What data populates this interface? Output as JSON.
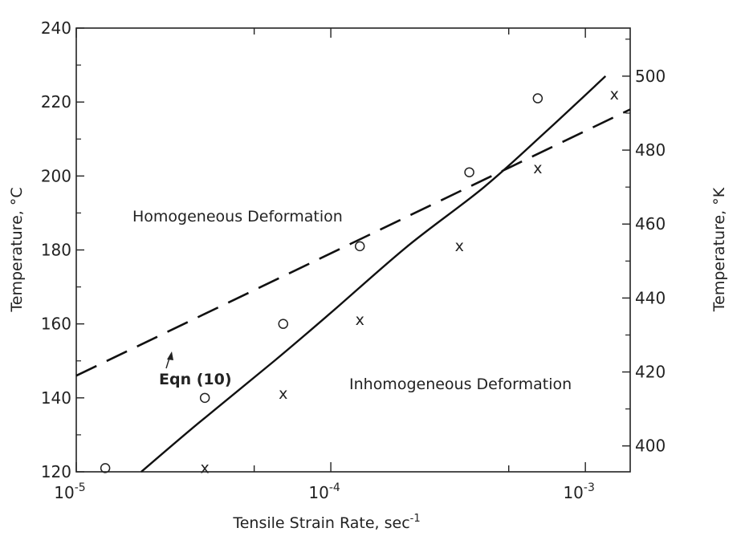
{
  "chart_data": {
    "type": "scatter",
    "xscale": "log",
    "xlim": [
      1e-05,
      0.0015
    ],
    "ylim": [
      120,
      240
    ],
    "y2lim": [
      393,
      513
    ],
    "xlabel": "Tensile Strain Rate, sec",
    "xlabel_superscript": "-1",
    "ylabel": "Temperature, °C",
    "y2label": "Temperature, °K",
    "x_tick_labels": [
      {
        "value": 1e-05,
        "base": "10",
        "exp": "-5"
      },
      {
        "value": 0.0001,
        "base": "10",
        "exp": "-4"
      },
      {
        "value": 0.001,
        "base": "10",
        "exp": "-3"
      }
    ],
    "y_ticks": [
      120,
      140,
      160,
      180,
      200,
      220,
      240
    ],
    "y2_ticks": [
      400,
      420,
      440,
      460,
      480,
      500
    ],
    "annotations": {
      "homogeneous": "Homogeneous  Deformation",
      "inhomogeneous": "Inhomogeneous  Deformation",
      "eqn": "Eqn  (10)"
    },
    "series": [
      {
        "marker": "circle",
        "points": [
          {
            "x": 1.3e-05,
            "y": 121
          },
          {
            "x": 3.2e-05,
            "y": 140
          },
          {
            "x": 6.5e-05,
            "y": 160
          },
          {
            "x": 0.00013,
            "y": 181
          },
          {
            "x": 0.00035,
            "y": 201
          },
          {
            "x": 0.00065,
            "y": 221
          }
        ]
      },
      {
        "marker": "x",
        "marker_text": "x",
        "points": [
          {
            "x": 3.2e-05,
            "y": 121
          },
          {
            "x": 6.5e-05,
            "y": 141
          },
          {
            "x": 0.00013,
            "y": 161
          },
          {
            "x": 0.00032,
            "y": 181
          },
          {
            "x": 0.00065,
            "y": 202
          },
          {
            "x": 0.0013,
            "y": 222
          }
        ]
      },
      {
        "type": "line",
        "style": "solid",
        "points": [
          {
            "x": 1.8e-05,
            "y": 120
          },
          {
            "x": 3e-05,
            "y": 133
          },
          {
            "x": 6e-05,
            "y": 150
          },
          {
            "x": 0.0001,
            "y": 163
          },
          {
            "x": 0.0002,
            "y": 181
          },
          {
            "x": 0.0004,
            "y": 197
          },
          {
            "x": 0.0007,
            "y": 212
          },
          {
            "x": 0.0012,
            "y": 227
          }
        ]
      },
      {
        "type": "line",
        "style": "dashed",
        "points": [
          {
            "x": 1e-05,
            "y": 146
          },
          {
            "x": 0.0015,
            "y": 218
          }
        ]
      }
    ]
  }
}
